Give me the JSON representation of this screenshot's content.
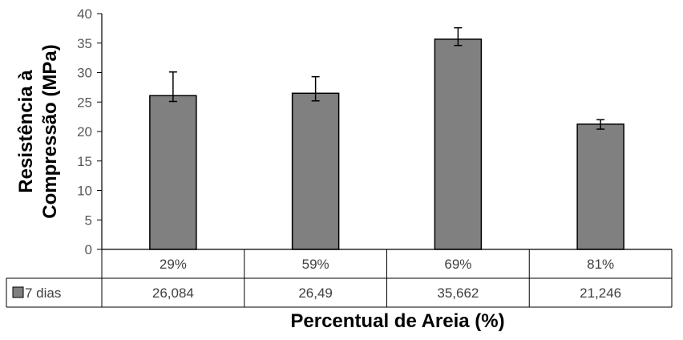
{
  "chart_data": {
    "type": "bar",
    "title": "",
    "xlabel": "Percentual de Areia (%)",
    "ylabel_lines": [
      "Resistência à",
      "Compressão (MPa)"
    ],
    "ylim": [
      0,
      40
    ],
    "yticks": [
      0,
      5,
      10,
      15,
      20,
      25,
      30,
      35,
      40
    ],
    "categories": [
      "29%",
      "59%",
      "69%",
      "81%"
    ],
    "series": [
      {
        "name": "7 dias",
        "values": [
          26.084,
          26.49,
          35.662,
          21.246
        ],
        "value_labels": [
          "26,084",
          "26,49",
          "35,662",
          "21,246"
        ],
        "error_upper": [
          30.1,
          29.3,
          37.6,
          22.0
        ],
        "error_lower": [
          25.1,
          25.2,
          34.6,
          20.4
        ],
        "color": "#808080"
      }
    ],
    "data_table": true,
    "legend_key_in_table": true,
    "grid": false
  }
}
